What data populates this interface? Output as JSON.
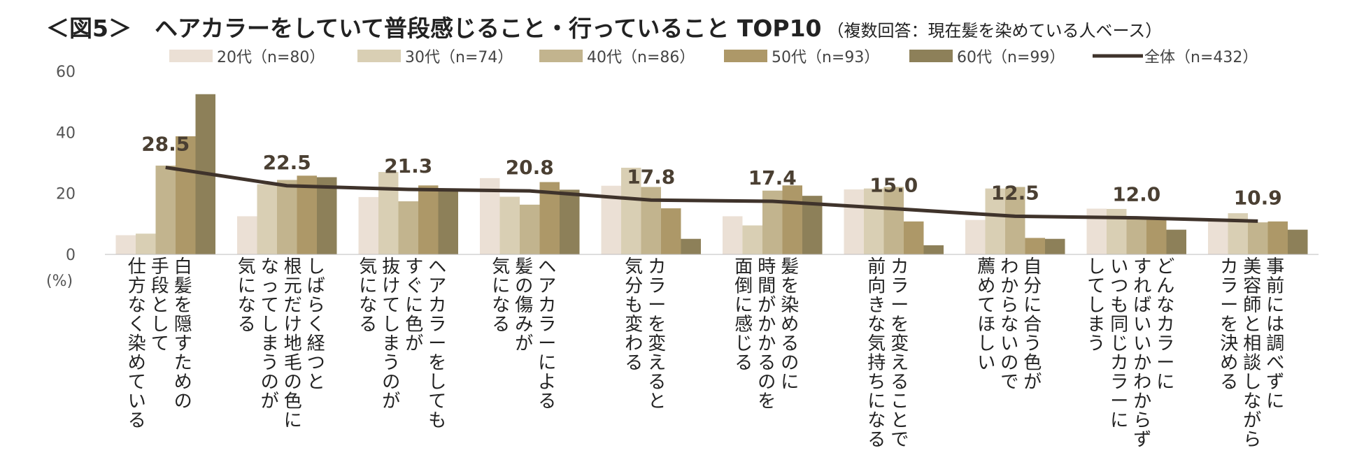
{
  "title": "＜図5＞　ヘアカラーをしていて普段感じること・行っていること TOP10",
  "subtitle": "（複数回答：現在髪を染めている人ベース）",
  "chart_data": {
    "type": "bar",
    "categories": [
      [
        "白髪を隠すための",
        "手段として",
        "仕方なく染めている"
      ],
      [
        "しばらく経つと",
        "根元だけ地毛の色に",
        "なってしまうのが",
        "気になる"
      ],
      [
        "ヘアカラーをしても",
        "すぐに色が",
        "抜けてしまうのが",
        "気になる"
      ],
      [
        "ヘアカラーによる",
        "髪の傷みが",
        "気になる"
      ],
      [
        "カラーを変えると",
        "気分も変わる"
      ],
      [
        "髪を染めるのに",
        "時間がかかるのを",
        "面倒に感じる"
      ],
      [
        "カラーを変えることで、",
        "前向きな気持ちになる"
      ],
      [
        "自分に合う色が",
        "わからないので",
        "薦めてほしい"
      ],
      [
        "どんなカラーに",
        "すればいいかわからず",
        "いつも同じカラーに",
        "してしまう"
      ],
      [
        "事前には調べずに",
        "美容師と相談しながら",
        "カラーを決める"
      ]
    ],
    "series": [
      {
        "name": "20代（n=80）",
        "color": "#ebe0d5",
        "values": [
          6.3,
          12.5,
          18.8,
          25.0,
          22.5,
          12.5,
          21.3,
          11.3,
          15.0,
          11.3
        ]
      },
      {
        "name": "30代（n=74）",
        "color": "#d9cfb4",
        "values": [
          6.8,
          23.0,
          27.0,
          18.9,
          28.4,
          9.5,
          21.6,
          21.6,
          14.9,
          13.5
        ]
      },
      {
        "name": "40代（n=86）",
        "color": "#c2b48e",
        "values": [
          29.1,
          24.4,
          17.4,
          16.3,
          22.1,
          20.9,
          22.1,
          22.1,
          11.6,
          10.5
        ]
      },
      {
        "name": "50代（n=93）",
        "color": "#ad9868",
        "values": [
          38.7,
          25.8,
          22.6,
          23.7,
          15.1,
          22.6,
          10.8,
          5.4,
          11.8,
          10.8
        ]
      },
      {
        "name": "60代（n=99）",
        "color": "#8d8059",
        "values": [
          52.5,
          25.3,
          21.2,
          21.2,
          5.1,
          19.2,
          3.0,
          5.1,
          8.1,
          8.1
        ]
      }
    ],
    "line": {
      "name": "全体（n=432）",
      "color": "#3f332b",
      "values": [
        28.5,
        22.5,
        21.3,
        20.8,
        17.8,
        17.4,
        15.0,
        12.5,
        12.0,
        10.9
      ]
    },
    "data_labels": [
      "28.5",
      "22.5",
      "21.3",
      "20.8",
      "17.8",
      "17.4",
      "15.0",
      "12.5",
      "12.0",
      "10.9"
    ],
    "y_ticks": [
      "0",
      "20",
      "40",
      "60"
    ],
    "ylim": [
      0,
      60
    ],
    "ylabel": "(%)",
    "legend_position": "top"
  }
}
